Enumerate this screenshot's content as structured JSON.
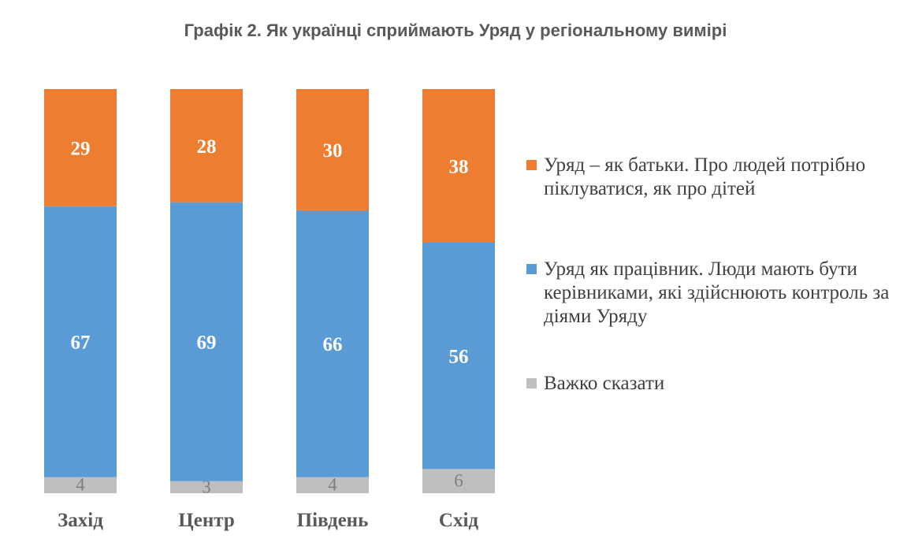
{
  "title": "Графік 2. Як українці сприймають Уряд у регіональному вимірі",
  "chart_data": {
    "type": "bar",
    "stacked": true,
    "categories": [
      "Захід",
      "Центр",
      "Південь",
      "Схід"
    ],
    "series": [
      {
        "name": "Важко сказати",
        "values": [
          4,
          3,
          4,
          6
        ],
        "color": "#BFBFBF",
        "label_color": "#7F7F7F"
      },
      {
        "name": "Уряд як працівник. Люди мають бути керівниками, які здійснюють контроль за діями Уряду",
        "values": [
          67,
          69,
          66,
          56
        ],
        "color": "#5B9BD5",
        "label_color": "#FFFFFF"
      },
      {
        "name": "Уряд – як батьки. Про людей потрібно піклуватися, як про дітей",
        "values": [
          29,
          28,
          30,
          38
        ],
        "color": "#ED7D31",
        "label_color": "#FFFFFF"
      }
    ],
    "ylim": [
      0,
      100
    ],
    "grid": false,
    "legend_position": "right"
  },
  "legend": [
    {
      "label": "Уряд – як батьки. Про людей потрібно піклуватися, як про дітей",
      "color": "#ED7D31",
      "icon": "orange-square"
    },
    {
      "label": "Уряд як працівник. Люди мають бути керівниками, які здійснюють контроль за діями Уряду",
      "color": "#5B9BD5",
      "icon": "blue-square"
    },
    {
      "label": "Важко сказати",
      "color": "#BFBFBF",
      "icon": "gray-square"
    }
  ]
}
